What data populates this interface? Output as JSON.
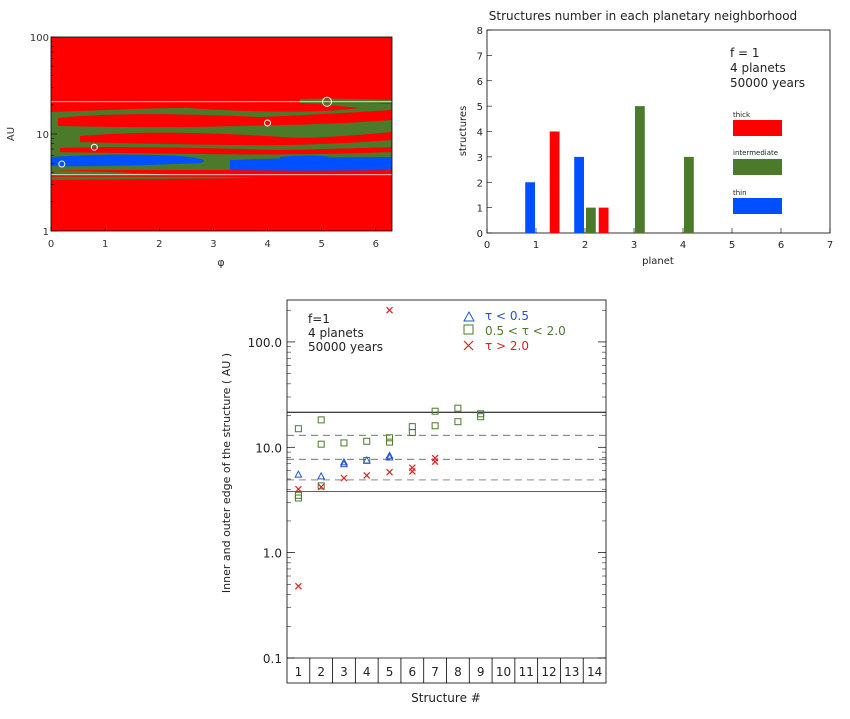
{
  "colors": {
    "thick": "#ff0000",
    "intermediate": "#4a7a2a",
    "thin": "#0050ff",
    "axis": "#000000",
    "tau_low": "#2255cc",
    "tau_mid": "#4a7a2a",
    "tau_high": "#dd2222"
  },
  "chart_data": [
    {
      "type": "heatmap",
      "title": "",
      "xlabel": "φ",
      "ylabel": "AU",
      "xlim": [
        0,
        6.3
      ],
      "ylim": [
        1,
        100
      ],
      "yscale": "log",
      "xticks": [
        "0",
        "1",
        "2",
        "3",
        "4",
        "5",
        "6"
      ],
      "yticks": [
        "1",
        "10",
        "100"
      ],
      "classes": [
        "thick",
        "intermediate",
        "thin"
      ],
      "planets": [
        {
          "phi": 0.2,
          "au": 4.9
        },
        {
          "phi": 0.8,
          "au": 7.3
        },
        {
          "phi": 4.0,
          "au": 13.0
        },
        {
          "phi": 5.1,
          "au": 21.5
        }
      ]
    },
    {
      "type": "bar",
      "title": "Structures number in each planetary neighborhood",
      "xlabel": "planet",
      "ylabel": "structures",
      "xlim": [
        0,
        7
      ],
      "ylim": [
        0,
        8
      ],
      "xticks": [
        "0",
        "1",
        "2",
        "3",
        "4",
        "5",
        "6",
        "7"
      ],
      "yticks": [
        "0",
        "1",
        "2",
        "3",
        "4",
        "5",
        "6",
        "7",
        "8"
      ],
      "categories": [
        "1",
        "2",
        "3",
        "4"
      ],
      "series": [
        {
          "name": "thin",
          "values": [
            2,
            3,
            0,
            0
          ]
        },
        {
          "name": "intermediate",
          "values": [
            0,
            1,
            5,
            3
          ]
        },
        {
          "name": "thick",
          "values": [
            4,
            1,
            0,
            0
          ]
        }
      ],
      "annotation": [
        "f = 1",
        "4 planets",
        "50000 years"
      ],
      "legend": [
        "thick",
        "intermediate",
        "thin"
      ]
    },
    {
      "type": "scatter",
      "title": "",
      "xlabel": "Structure #",
      "ylabel": "Inner and outer edge of the structure ( AU )",
      "yscale": "log",
      "ylim": [
        0.1,
        250
      ],
      "xlim": [
        0.5,
        14.5
      ],
      "xticks": [
        "1",
        "2",
        "3",
        "4",
        "5",
        "6",
        "7",
        "8",
        "9",
        "10",
        "11",
        "12",
        "13",
        "14"
      ],
      "yticks": [
        "0.1",
        "1.0",
        "10.0",
        "100.0"
      ],
      "annotation": [
        "f=1",
        "4 planets",
        "50000 years"
      ],
      "legend": [
        "τ < 0.5",
        "0.5 < τ < 2.0",
        "τ > 2.0"
      ],
      "hlines_solid": [
        3.8,
        21.5
      ],
      "hlines_dashed": [
        4.9,
        7.7,
        13.0
      ],
      "series": [
        {
          "name": "τ < 0.5",
          "marker": "triangle",
          "points": [
            [
              1,
              5.5
            ],
            [
              2,
              5.3
            ],
            [
              3,
              7.2
            ],
            [
              3,
              6.9
            ],
            [
              4,
              7.5
            ],
            [
              5,
              8.3
            ],
            [
              5,
              8.0
            ]
          ]
        },
        {
          "name": "0.5 < τ < 2.0",
          "marker": "square",
          "points": [
            [
              1,
              15.0
            ],
            [
              1,
              3.5
            ],
            [
              1,
              3.3
            ],
            [
              2,
              18.2
            ],
            [
              2,
              10.7
            ],
            [
              2,
              4.3
            ],
            [
              3,
              11.0
            ],
            [
              4,
              11.4
            ],
            [
              4,
              7.5
            ],
            [
              5,
              12.3
            ],
            [
              5,
              11.2
            ],
            [
              6,
              15.7
            ],
            [
              6,
              13.8
            ],
            [
              7,
              22.0
            ],
            [
              7,
              16.0
            ],
            [
              8,
              23.5
            ],
            [
              8,
              17.5
            ],
            [
              9,
              20.8
            ],
            [
              9,
              19.5
            ]
          ]
        },
        {
          "name": "τ > 2.0",
          "marker": "x",
          "points": [
            [
              1,
              0.48
            ],
            [
              1,
              4.0
            ],
            [
              2,
              4.2
            ],
            [
              3,
              5.1
            ],
            [
              4,
              5.4
            ],
            [
              5,
              200.0
            ],
            [
              5,
              5.8
            ],
            [
              6,
              6.4
            ],
            [
              6,
              5.9
            ],
            [
              7,
              7.9
            ],
            [
              7,
              7.3
            ]
          ]
        }
      ]
    }
  ]
}
